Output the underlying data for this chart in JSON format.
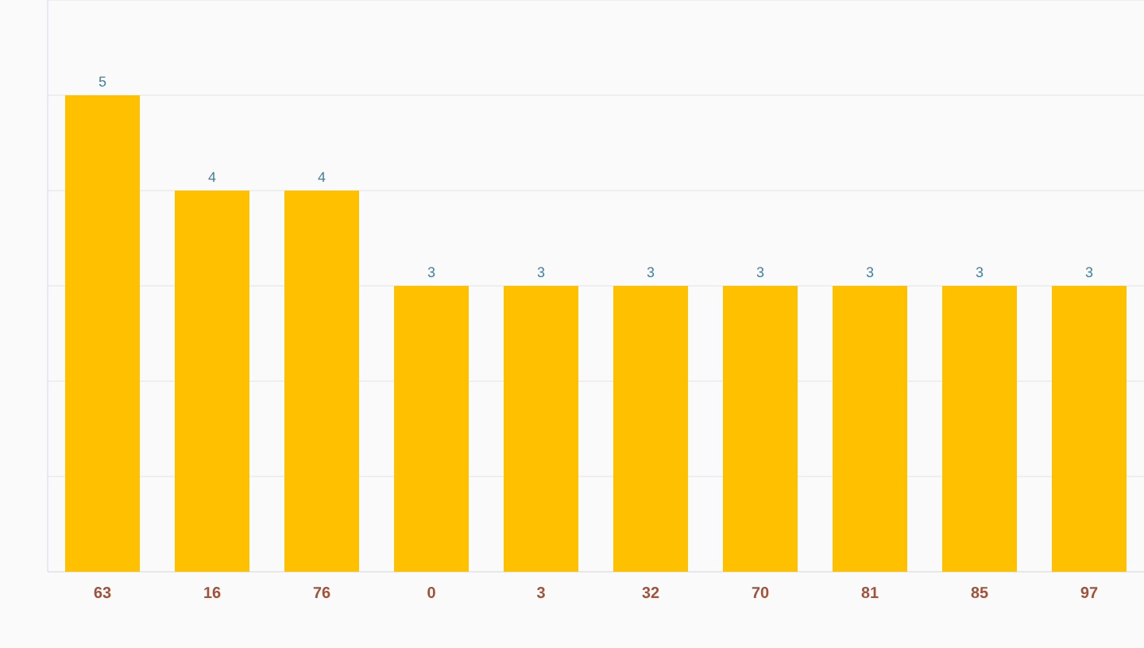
{
  "chart_data": {
    "type": "bar",
    "categories": [
      "63",
      "16",
      "76",
      "0",
      "3",
      "32",
      "70",
      "81",
      "85",
      "97"
    ],
    "values": [
      5,
      4,
      4,
      3,
      3,
      3,
      3,
      3,
      3,
      3
    ],
    "color": "#ffc000",
    "ylim": [
      0,
      6
    ],
    "yticks": [
      {
        "value": 0,
        "label": null
      },
      {
        "value": 1,
        "label": null
      },
      {
        "value": 2,
        "label": null
      },
      {
        "value": 3,
        "label": null
      },
      {
        "value": 4,
        "label": null
      },
      {
        "value": 5,
        "label": null
      },
      {
        "value": 6,
        "label": null
      }
    ],
    "grid": "y",
    "data_labels": true,
    "tick_labels": "x"
  }
}
